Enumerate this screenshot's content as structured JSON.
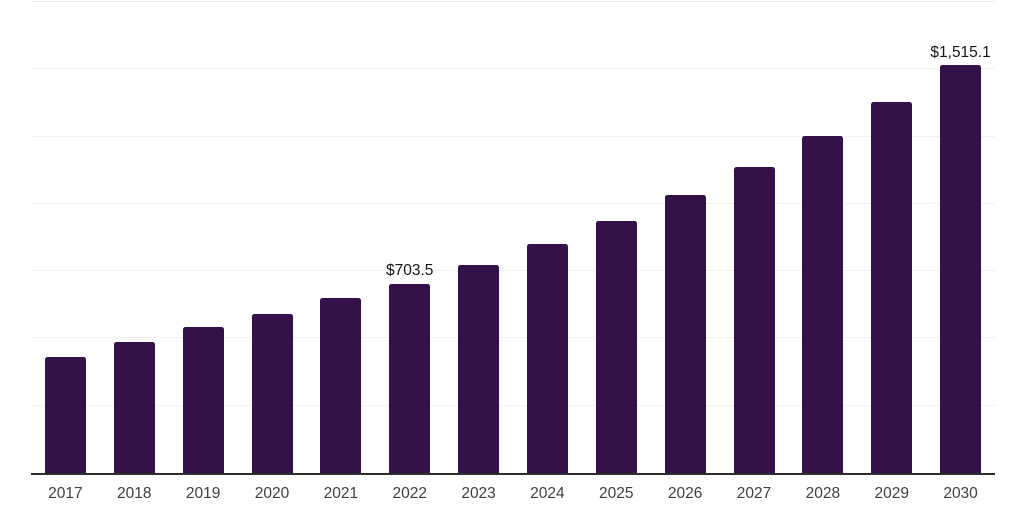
{
  "chart_data": {
    "type": "bar",
    "title": "",
    "xlabel": "",
    "ylabel": "",
    "categories": [
      "2017",
      "2018",
      "2019",
      "2020",
      "2021",
      "2022",
      "2023",
      "2024",
      "2025",
      "2026",
      "2027",
      "2028",
      "2029",
      "2030"
    ],
    "values": [
      430,
      487,
      542,
      592,
      649,
      703.5,
      774,
      852,
      938,
      1033,
      1137,
      1251,
      1377,
      1515.1
    ],
    "data_labels": {
      "2022": "$703.5",
      "2030": "$1,515.1"
    },
    "ylim": [
      0,
      1750
    ],
    "gridline_step": 250,
    "grid": "horizontal",
    "legend": "none",
    "y_tick_labels_visible": false
  },
  "colors": {
    "bar": "#341148",
    "axis_line": "#2e2e2e",
    "gridline": "#f1f1f1",
    "gridline_top": "#e9e9e9",
    "background": "#ffffff",
    "tick_label": "#3f3f3f",
    "data_label": "#161616"
  }
}
